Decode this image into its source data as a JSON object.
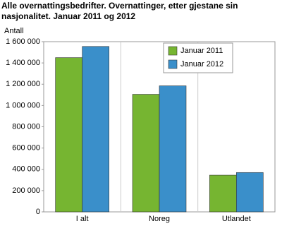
{
  "chart_data": {
    "type": "bar",
    "title": "Alle overnattingsbedrifter. Overnattinger, etter gjestane sin nasjonalitet. Januar 2011 og 2012",
    "y_label": "Antall",
    "categories": [
      "I alt",
      "Noreg",
      "Utlandet"
    ],
    "series": [
      {
        "name": "Januar 2011",
        "color": "#76b531",
        "values": [
          1450000,
          1105000,
          345000
        ]
      },
      {
        "name": "Januar 2012",
        "color": "#3a8fca",
        "values": [
          1555000,
          1185000,
          370000
        ]
      }
    ],
    "ylim": [
      0,
      1600000
    ],
    "yticks": [
      0,
      {
        "value": 200000,
        "label": "200 000"
      },
      {
        "value": 400000,
        "label": "400 000"
      },
      {
        "value": 600000,
        "label": "600 000"
      },
      {
        "value": 800000,
        "label": "800 000"
      },
      {
        "value": 1000000,
        "label": "1 000 000"
      },
      {
        "value": 1200000,
        "label": "1 200 000"
      },
      {
        "value": 1400000,
        "label": "1 400 000"
      },
      {
        "value": 1600000,
        "label": "1 600 000"
      }
    ],
    "grid": true
  }
}
